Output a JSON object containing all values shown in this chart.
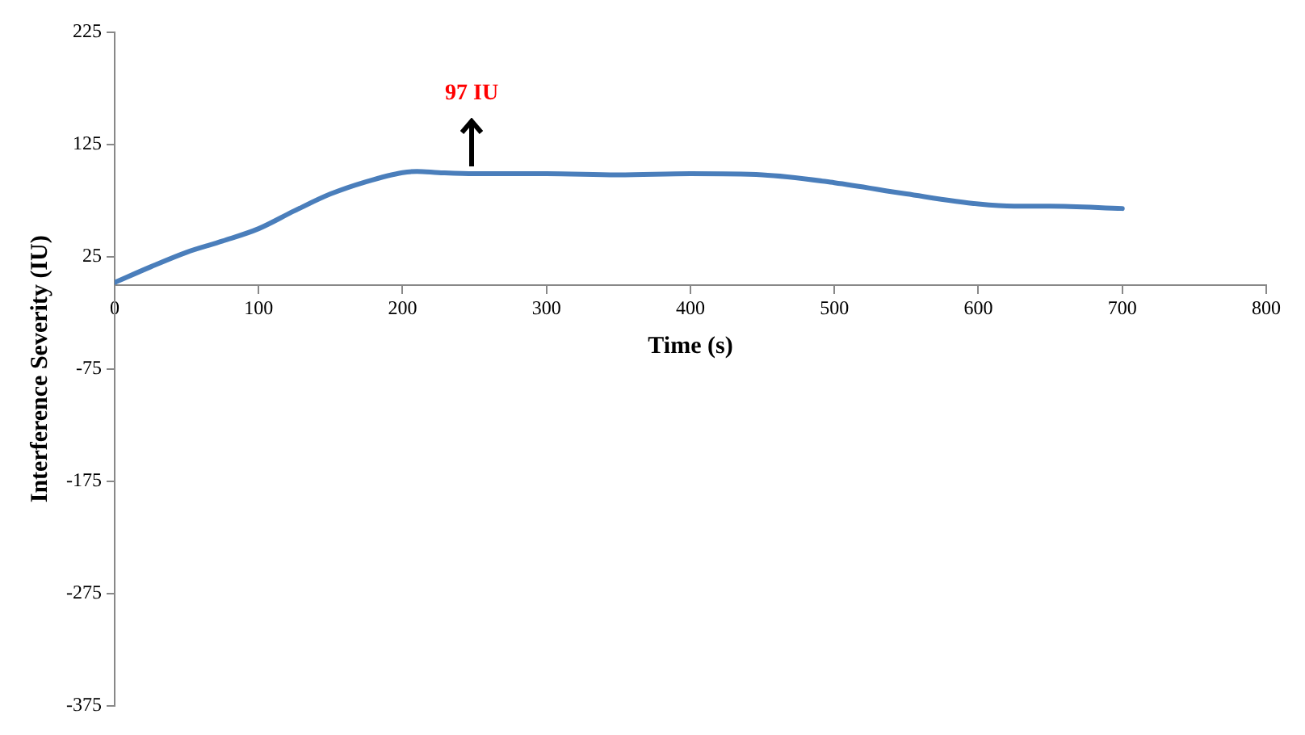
{
  "chart_data": {
    "type": "line",
    "xlabel": "Time (s)",
    "ylabel": "Interference Severity (IU)",
    "x": [
      0,
      25,
      50,
      75,
      100,
      125,
      150,
      175,
      200,
      210,
      225,
      250,
      300,
      350,
      400,
      450,
      500,
      550,
      600,
      625,
      650,
      700
    ],
    "series": [
      {
        "color": "#4a7ebb",
        "values": [
          2,
          16,
          29,
          39,
          50,
          66,
          81,
          92,
          100,
          101,
          100,
          99,
          99,
          98,
          99,
          98,
          91,
          81,
          72,
          70,
          70,
          68
        ]
      }
    ],
    "xlim": [
      0,
      800
    ],
    "xticks": [
      0,
      100,
      200,
      300,
      400,
      500,
      600,
      700,
      800
    ],
    "ylim": [
      -375,
      225
    ],
    "yticks": [
      -375,
      -275,
      -175,
      -75,
      25,
      125,
      225
    ],
    "annotations": [
      {
        "text": "97 IU",
        "x": 248,
        "y": 97
      }
    ],
    "grid": false,
    "legend": false,
    "marker": "none",
    "line_style": "solid"
  }
}
